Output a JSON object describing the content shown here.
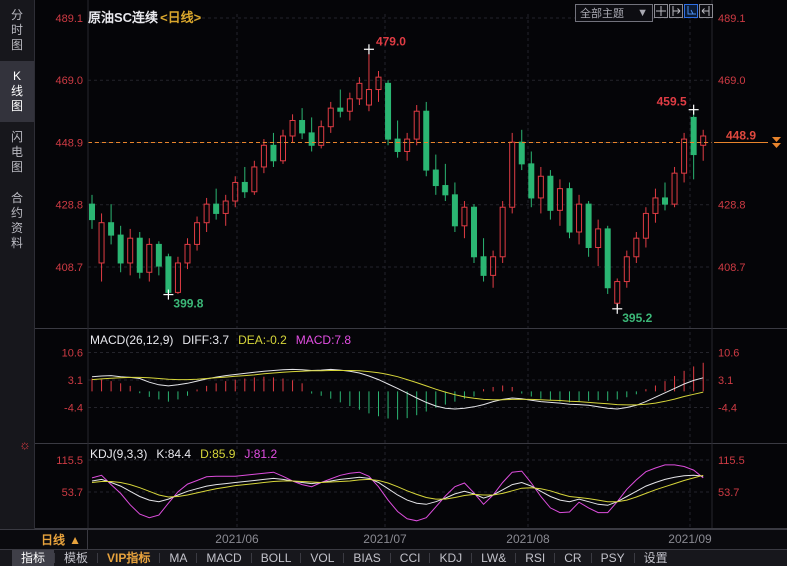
{
  "header": {
    "title": "原油SC连续",
    "period_tag": "<日线>",
    "theme_dropdown": "全部主题",
    "dropdown_arrow": "▼"
  },
  "sidebar": {
    "items": [
      {
        "label": "分时图",
        "name": "time-chart",
        "selected": false
      },
      {
        "label": "K线图",
        "name": "kline-chart",
        "selected": true
      },
      {
        "label": "闪电图",
        "name": "lightning-chart",
        "selected": false
      },
      {
        "label": "合约资料",
        "name": "contract-info",
        "selected": false
      }
    ]
  },
  "panels": {
    "macd_header": {
      "name": "MACD(26,12,9)",
      "diff": "DIFF:3.7",
      "dea": "DEA:-0.2",
      "macd": "MACD:7.8"
    },
    "kdj_header": {
      "name": "KDJ(9,3,3)",
      "k": "K:84.4",
      "d": "D:85.9",
      "j": "J:81.2"
    }
  },
  "axis_row": {
    "period_label": "日线",
    "period_arrow": "▲"
  },
  "toolbar": {
    "items": [
      {
        "label": "指标",
        "name": "indicator",
        "selected": true
      },
      {
        "label": "模板",
        "name": "template"
      },
      {
        "label": "VIP指标",
        "name": "vip-indicator",
        "vip": true
      },
      {
        "label": "MA",
        "name": "ma"
      },
      {
        "label": "MACD",
        "name": "macd"
      },
      {
        "label": "BOLL",
        "name": "boll"
      },
      {
        "label": "VOL",
        "name": "vol"
      },
      {
        "label": "BIAS",
        "name": "bias"
      },
      {
        "label": "CCI",
        "name": "cci"
      },
      {
        "label": "KDJ",
        "name": "kdj"
      },
      {
        "label": "LW&",
        "name": "lw"
      },
      {
        "label": "RSI",
        "name": "rsi"
      },
      {
        "label": "CR",
        "name": "cr"
      },
      {
        "label": "PSY",
        "name": "psy"
      },
      {
        "label": "设置",
        "name": "settings"
      }
    ]
  },
  "colors": {
    "up": "#e03c44",
    "down": "#2bb673",
    "low_label": "#3cb878",
    "orange": "#e8842c",
    "yellow": "#d6d53a",
    "magenta": "#dd4ddd",
    "white_line": "#e4e4e8",
    "accent_blue": "#4a8ef0",
    "axis_text": "#cf3b44",
    "grid": "#24242b",
    "border": "#3a3a42"
  },
  "chart_data": {
    "type": "candlestick+macd+kdj",
    "symbol": "原油SC连续",
    "period": "日线",
    "x_labels": [
      "2021/06",
      "2021/07",
      "2021/08",
      "2021/09"
    ],
    "y_axis_labels": [
      489.1,
      469.0,
      448.9,
      428.8,
      408.7
    ],
    "macd_axis_labels": [
      10.6,
      3.1,
      -4.4
    ],
    "kdj_axis_labels": [
      115.5,
      53.7
    ],
    "price_line": {
      "value": 448.9,
      "label": "448.9"
    },
    "annotations": [
      {
        "index": 29,
        "price": 479.0,
        "label": "479.0",
        "type": "high",
        "align": "right"
      },
      {
        "index": 63,
        "price": 459.5,
        "label": "459.5",
        "type": "high",
        "align": "left"
      },
      {
        "index": 8,
        "price": 399.8,
        "label": "399.8",
        "type": "low",
        "align": "right"
      },
      {
        "index": 55,
        "price": 395.2,
        "label": "395.2",
        "type": "low",
        "align": "right"
      }
    ],
    "candles": [
      [
        429,
        432,
        421,
        424
      ],
      [
        410,
        426,
        404,
        423
      ],
      [
        423,
        429,
        416,
        419
      ],
      [
        419,
        422,
        407,
        410
      ],
      [
        410,
        421,
        406,
        418
      ],
      [
        418,
        420,
        405,
        407
      ],
      [
        407,
        418,
        404,
        416
      ],
      [
        416,
        417,
        406,
        409
      ],
      [
        412,
        413,
        399.8,
        400.5
      ],
      [
        400.5,
        412,
        400,
        410
      ],
      [
        410,
        418,
        408,
        416
      ],
      [
        416,
        425,
        414,
        423
      ],
      [
        423,
        431,
        420,
        429
      ],
      [
        429,
        434,
        424,
        426
      ],
      [
        426,
        432,
        422,
        430
      ],
      [
        430,
        438,
        428,
        436
      ],
      [
        436,
        441,
        431,
        433
      ],
      [
        433,
        443,
        432,
        441
      ],
      [
        441,
        450,
        439,
        448
      ],
      [
        448,
        452,
        441,
        443
      ],
      [
        443,
        453,
        442,
        451
      ],
      [
        451,
        458,
        449,
        456
      ],
      [
        456,
        460,
        450,
        452
      ],
      [
        452,
        457,
        446,
        448
      ],
      [
        448,
        456,
        447,
        454
      ],
      [
        454,
        462,
        452,
        460
      ],
      [
        460,
        466,
        457,
        459
      ],
      [
        459,
        465,
        456,
        463
      ],
      [
        463,
        470,
        461,
        468
      ],
      [
        461,
        479.0,
        459,
        466
      ],
      [
        466,
        472,
        462,
        470
      ],
      [
        468,
        469,
        448,
        450
      ],
      [
        450,
        456,
        444,
        446
      ],
      [
        446,
        452,
        443,
        450
      ],
      [
        450,
        461,
        448,
        459
      ],
      [
        459,
        462,
        438,
        440
      ],
      [
        440,
        445,
        432,
        435
      ],
      [
        435,
        442,
        430,
        432
      ],
      [
        432,
        436,
        420,
        422
      ],
      [
        422,
        430,
        418,
        428
      ],
      [
        428,
        429,
        410,
        412
      ],
      [
        412,
        418,
        404,
        406
      ],
      [
        406,
        414,
        402,
        412
      ],
      [
        412,
        430,
        410,
        428
      ],
      [
        428,
        452,
        426,
        449
      ],
      [
        449,
        453,
        440,
        442
      ],
      [
        442,
        446,
        428,
        431
      ],
      [
        431,
        441,
        426,
        438
      ],
      [
        438,
        440,
        424,
        427
      ],
      [
        427,
        437,
        422,
        434
      ],
      [
        434,
        436,
        418,
        420
      ],
      [
        420,
        432,
        416,
        429
      ],
      [
        429,
        430,
        412,
        415
      ],
      [
        415,
        424,
        409,
        421
      ],
      [
        421,
        422,
        400,
        402
      ],
      [
        397,
        405,
        395.2,
        404
      ],
      [
        404,
        414,
        402,
        412
      ],
      [
        412,
        420,
        410,
        418
      ],
      [
        418,
        428,
        415,
        426
      ],
      [
        426,
        434,
        423,
        431
      ],
      [
        431,
        436,
        427,
        429
      ],
      [
        429,
        441,
        428,
        439
      ],
      [
        439,
        452,
        436,
        450
      ],
      [
        457,
        459.5,
        437,
        445
      ],
      [
        448,
        453,
        443,
        451
      ]
    ],
    "macd": {
      "hist": [
        3.5,
        3.2,
        2.8,
        2.2,
        1.5,
        -0.5,
        -1.5,
        -2.2,
        -2.8,
        -2.2,
        -1.2,
        0.5,
        1.5,
        2.2,
        2.8,
        3.2,
        3.5,
        3.8,
        4.0,
        3.8,
        3.5,
        3.0,
        2.2,
        -0.6,
        -1.2,
        -2.0,
        -3.0,
        -4.0,
        -5.0,
        -6.0,
        -6.8,
        -7.4,
        -7.7,
        -7.3,
        -6.5,
        -5.5,
        -4.5,
        -3.6,
        -2.8,
        -2.0,
        -1.4,
        0.6,
        1.2,
        1.6,
        1.2,
        -0.6,
        -1.4,
        -2.0,
        -2.4,
        -2.8,
        -3.0,
        -2.8,
        -2.6,
        -2.4,
        -2.6,
        -2.2,
        -1.6,
        -0.8,
        0.6,
        1.6,
        2.8,
        4.2,
        5.6,
        6.8,
        7.8
      ],
      "diff": [
        4.0,
        4.2,
        4.3,
        4.0,
        3.8,
        3.5,
        2.5,
        1.8,
        1.5,
        1.8,
        2.2,
        2.8,
        3.4,
        3.9,
        4.3,
        4.6,
        4.9,
        5.2,
        5.5,
        5.7,
        5.9,
        6.0,
        5.9,
        5.7,
        5.8,
        6.0,
        5.8,
        5.5,
        5.0,
        4.2,
        3.2,
        2.0,
        0.8,
        -0.5,
        -1.8,
        -3.0,
        -4.0,
        -4.6,
        -4.8,
        -4.6,
        -4.2,
        -3.6,
        -2.8,
        -2.2,
        -1.8,
        -2.0,
        -2.4,
        -2.8,
        -3.0,
        -3.2,
        -3.5,
        -3.6,
        -3.8,
        -4.2,
        -4.6,
        -4.8,
        -4.4,
        -3.8,
        -2.8,
        -1.6,
        -0.4,
        0.8,
        2.0,
        3.0,
        3.7
      ],
      "dea": [
        3.2,
        3.4,
        3.6,
        3.7,
        3.8,
        3.8,
        3.7,
        3.5,
        3.3,
        3.2,
        3.2,
        3.3,
        3.5,
        3.7,
        3.9,
        4.1,
        4.3,
        4.5,
        4.8,
        5.0,
        5.2,
        5.4,
        5.5,
        5.6,
        5.6,
        5.7,
        5.7,
        5.7,
        5.6,
        5.4,
        5.1,
        4.6,
        4.0,
        3.2,
        2.4,
        1.5,
        0.6,
        -0.2,
        -0.9,
        -1.5,
        -1.9,
        -2.2,
        -2.3,
        -2.3,
        -2.2,
        -2.2,
        -2.2,
        -2.3,
        -2.4,
        -2.5,
        -2.7,
        -2.8,
        -3.0,
        -3.2,
        -3.4,
        -3.6,
        -3.7,
        -3.7,
        -3.5,
        -3.2,
        -2.7,
        -2.1,
        -1.4,
        -0.8,
        -0.2
      ]
    },
    "kdj": {
      "k": [
        75,
        78,
        72,
        65,
        55,
        45,
        38,
        35,
        40,
        48,
        55,
        60,
        65,
        68,
        70,
        72,
        74,
        76,
        78,
        80,
        78,
        75,
        72,
        70,
        72,
        75,
        78,
        80,
        82,
        80,
        72,
        60,
        48,
        38,
        32,
        30,
        35,
        42,
        50,
        55,
        50,
        42,
        48,
        58,
        68,
        72,
        65,
        55,
        45,
        38,
        35,
        40,
        35,
        30,
        28,
        35,
        45,
        55,
        65,
        72,
        78,
        82,
        85,
        86,
        84.4
      ],
      "d": [
        72,
        74,
        74,
        72,
        68,
        62,
        55,
        48,
        44,
        45,
        48,
        52,
        56,
        60,
        63,
        66,
        68,
        70,
        72,
        74,
        75,
        75,
        74,
        73,
        72,
        73,
        74,
        75,
        77,
        78,
        76,
        71,
        64,
        56,
        49,
        43,
        40,
        40,
        43,
        47,
        49,
        48,
        48,
        51,
        56,
        61,
        62,
        60,
        56,
        50,
        45,
        43,
        41,
        38,
        35,
        35,
        38,
        44,
        51,
        58,
        64,
        70,
        76,
        81,
        85.9
      ],
      "j": [
        81,
        86,
        68,
        51,
        29,
        11,
        4,
        9,
        32,
        54,
        69,
        76,
        83,
        84,
        84,
        84,
        86,
        88,
        90,
        92,
        84,
        75,
        68,
        64,
        72,
        79,
        86,
        90,
        92,
        84,
        64,
        38,
        16,
        2,
        -2,
        4,
        25,
        46,
        64,
        71,
        52,
        30,
        48,
        72,
        92,
        94,
        71,
        45,
        23,
        14,
        15,
        34,
        23,
        14,
        14,
        35,
        59,
        77,
        93,
        100,
        106,
        106,
        103,
        96,
        81.2
      ]
    }
  }
}
